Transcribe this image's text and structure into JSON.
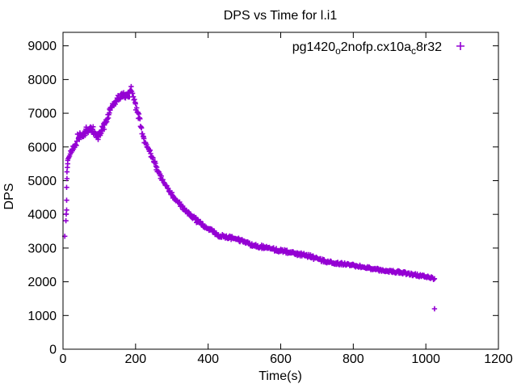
{
  "title": "DPS vs Time for l.i1",
  "legend": {
    "prefix": "pg1420",
    "sub1": "o",
    "mid": "2nofp.cx10a",
    "sub2": "c",
    "suffix": "8r32",
    "marker": "plus"
  },
  "colors": {
    "series": "#9400d3",
    "text": "#000000",
    "border": "#000000",
    "background": "#ffffff"
  },
  "chart_data": {
    "type": "scatter",
    "marker": "plus",
    "title": "DPS vs Time for l.i1",
    "xlabel": "Time(s)",
    "ylabel": "DPS",
    "xlim": [
      0,
      1200
    ],
    "ylim": [
      0,
      9400
    ],
    "xticks": [
      0,
      200,
      400,
      600,
      800,
      1000,
      1200
    ],
    "yticks": [
      0,
      1000,
      2000,
      3000,
      4000,
      5000,
      6000,
      7000,
      8000,
      9000
    ],
    "grid": false,
    "legend_position": "top-right-inside",
    "series": [
      {
        "name": "pg1420_o2nofp.cx10a_c8r32",
        "points": [
          [
            5,
            3350
          ],
          [
            8,
            3810
          ],
          [
            9,
            4010
          ],
          [
            10,
            4130
          ],
          [
            10,
            4420
          ],
          [
            10,
            4800
          ],
          [
            11,
            5060
          ],
          [
            11,
            5260
          ],
          [
            12,
            5390
          ],
          [
            13,
            5500
          ],
          [
            13,
            5600
          ],
          [
            14,
            5650
          ],
          [
            16,
            5690
          ],
          [
            18,
            5730
          ],
          [
            20,
            5790
          ],
          [
            23,
            5840
          ],
          [
            26,
            5890
          ],
          [
            29,
            5940
          ],
          [
            32,
            5990
          ],
          [
            35,
            6050
          ],
          [
            38,
            6170
          ],
          [
            40,
            6380
          ],
          [
            43,
            6280
          ],
          [
            46,
            6310
          ],
          [
            50,
            6340
          ],
          [
            54,
            6380
          ],
          [
            58,
            6420
          ],
          [
            62,
            6460
          ],
          [
            66,
            6490
          ],
          [
            70,
            6520
          ],
          [
            74,
            6560
          ],
          [
            78,
            6570
          ],
          [
            82,
            6520
          ],
          [
            86,
            6450
          ],
          [
            90,
            6380
          ],
          [
            94,
            6310
          ],
          [
            98,
            6300
          ],
          [
            102,
            6390
          ],
          [
            106,
            6490
          ],
          [
            110,
            6580
          ],
          [
            114,
            6650
          ],
          [
            118,
            6720
          ],
          [
            122,
            6830
          ],
          [
            126,
            6960
          ],
          [
            130,
            7090
          ],
          [
            134,
            7180
          ],
          [
            138,
            7260
          ],
          [
            142,
            7320
          ],
          [
            146,
            7370
          ],
          [
            151,
            7410
          ],
          [
            156,
            7450
          ],
          [
            161,
            7480
          ],
          [
            166,
            7510
          ],
          [
            171,
            7530
          ],
          [
            176,
            7560
          ],
          [
            181,
            7610
          ],
          [
            185,
            7670
          ],
          [
            188,
            7790
          ],
          [
            191,
            7590
          ],
          [
            194,
            7490
          ],
          [
            197,
            7410
          ],
          [
            200,
            7280
          ],
          [
            203,
            7160
          ],
          [
            207,
            7010
          ],
          [
            211,
            6860
          ],
          [
            215,
            6590
          ],
          [
            219,
            6390
          ],
          [
            223,
            6250
          ],
          [
            228,
            6110
          ],
          [
            233,
            5990
          ],
          [
            238,
            5870
          ],
          [
            244,
            5720
          ],
          [
            250,
            5570
          ],
          [
            256,
            5430
          ],
          [
            262,
            5280
          ],
          [
            268,
            5150
          ],
          [
            274,
            5030
          ],
          [
            281,
            4900
          ],
          [
            288,
            4780
          ],
          [
            295,
            4670
          ],
          [
            302,
            4560
          ],
          [
            310,
            4450
          ],
          [
            318,
            4350
          ],
          [
            326,
            4260
          ],
          [
            334,
            4160
          ],
          [
            342,
            4070
          ],
          [
            351,
            3990
          ],
          [
            360,
            3900
          ],
          [
            370,
            3800
          ],
          [
            380,
            3720
          ],
          [
            390,
            3660
          ],
          [
            400,
            3580
          ],
          [
            412,
            3480
          ],
          [
            424,
            3400
          ],
          [
            434,
            3360
          ],
          [
            445,
            3340
          ],
          [
            456,
            3320
          ],
          [
            467,
            3300
          ],
          [
            478,
            3270
          ],
          [
            490,
            3230
          ],
          [
            501,
            3190
          ],
          [
            512,
            3130
          ],
          [
            523,
            3080
          ],
          [
            534,
            3060
          ],
          [
            545,
            3040
          ],
          [
            558,
            3010
          ],
          [
            571,
            2980
          ],
          [
            584,
            2950
          ],
          [
            597,
            2925
          ],
          [
            610,
            2905
          ],
          [
            623,
            2880
          ],
          [
            637,
            2850
          ],
          [
            651,
            2820
          ],
          [
            665,
            2790
          ],
          [
            679,
            2760
          ],
          [
            693,
            2710
          ],
          [
            707,
            2660
          ],
          [
            721,
            2615
          ],
          [
            735,
            2580
          ],
          [
            749,
            2550
          ],
          [
            763,
            2535
          ],
          [
            777,
            2525
          ],
          [
            791,
            2500
          ],
          [
            805,
            2475
          ],
          [
            820,
            2450
          ],
          [
            838,
            2420
          ],
          [
            857,
            2380
          ],
          [
            875,
            2350
          ],
          [
            894,
            2325
          ],
          [
            912,
            2300
          ],
          [
            931,
            2280
          ],
          [
            950,
            2245
          ],
          [
            968,
            2210
          ],
          [
            986,
            2175
          ],
          [
            1004,
            2145
          ],
          [
            1014,
            2120
          ],
          [
            1024,
            2090
          ]
        ],
        "outliers": [
          [
            1024,
            1200
          ]
        ]
      }
    ]
  }
}
